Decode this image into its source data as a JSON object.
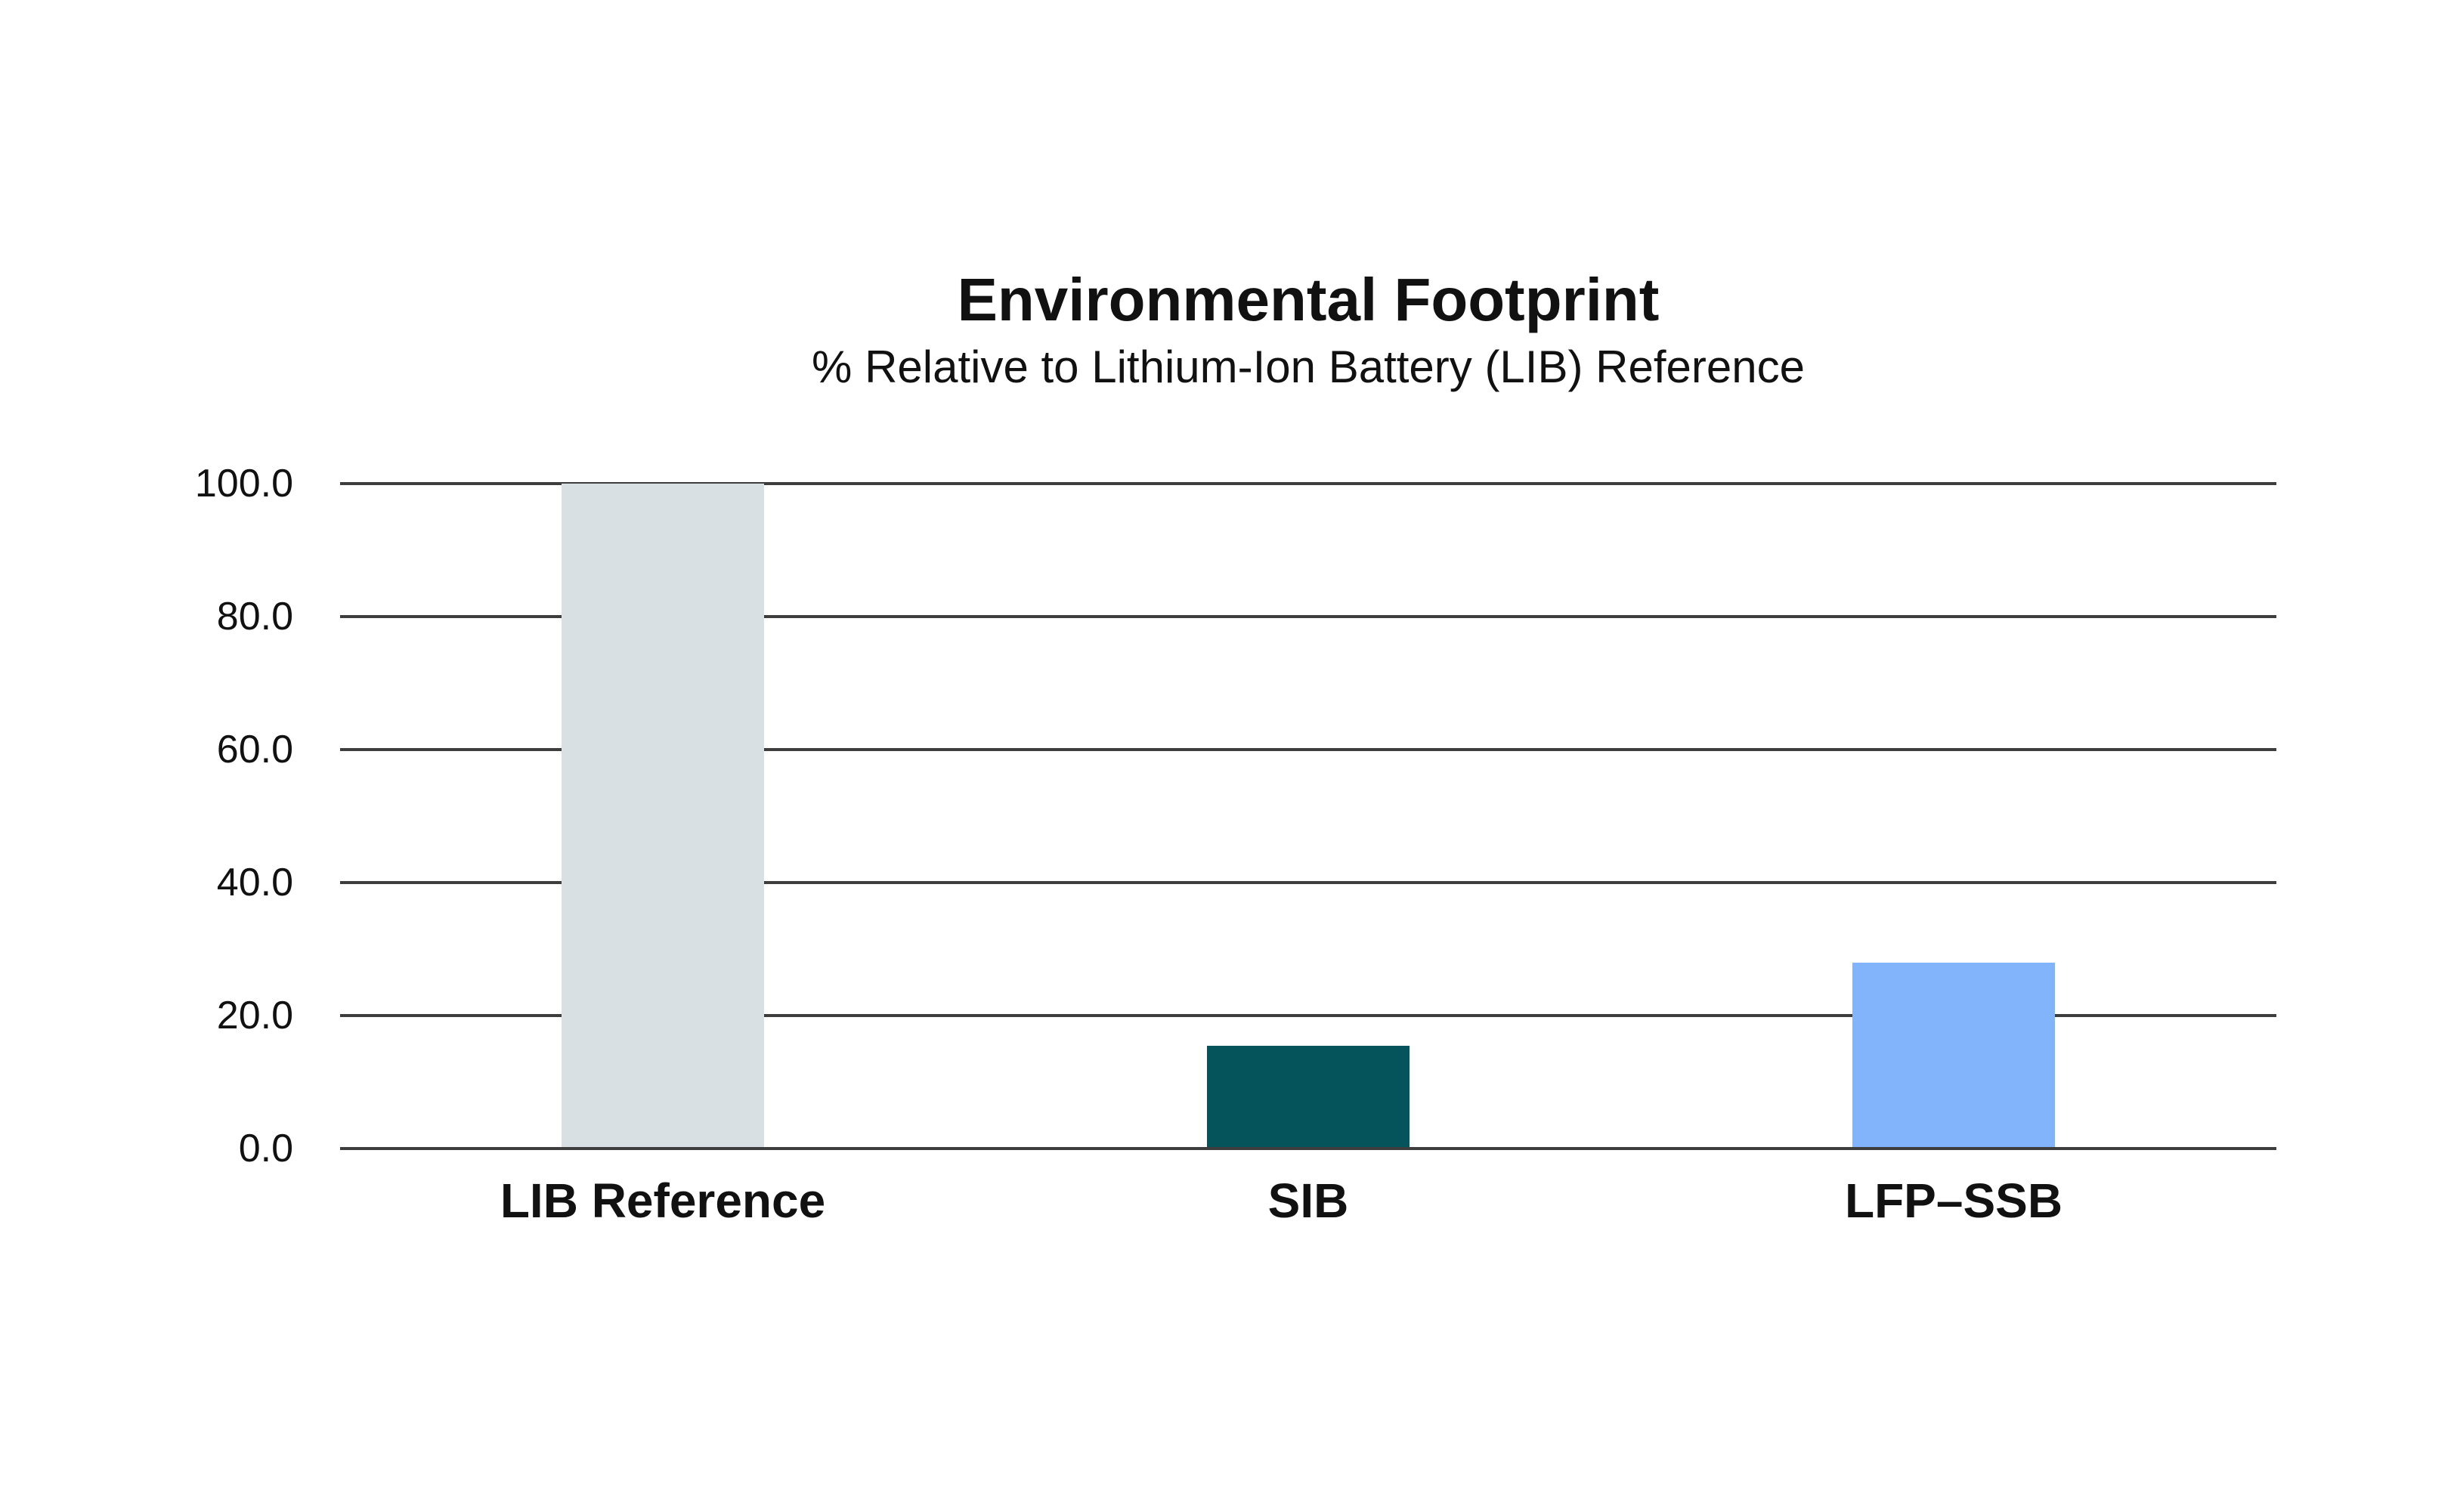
{
  "page": {
    "background_color": "#ffffff",
    "text_color": "#111111"
  },
  "chart_data": {
    "type": "bar",
    "title": "Environmental Footprint",
    "subtitle": "% Relative to Lithium-Ion Battery (LIB) Reference",
    "categories": [
      "LIB Reference",
      "SIB",
      "LFP–SSB"
    ],
    "values": [
      100.0,
      15.5,
      28.0
    ],
    "bar_colors": [
      "#d9e0e4",
      "#05545c",
      "#82b4fc"
    ],
    "xlabel": "",
    "ylabel": "",
    "ylim": [
      0,
      100
    ],
    "yticks": [
      0,
      20,
      40,
      60,
      80,
      100
    ],
    "ytick_labels": [
      "0.0",
      "20.0",
      "40.0",
      "60.0",
      "80.0",
      "100.0"
    ],
    "grid": true,
    "gridline_color": "#3d3d3d",
    "axis_line_color": "#3d3d3d",
    "legend_position": "none"
  }
}
